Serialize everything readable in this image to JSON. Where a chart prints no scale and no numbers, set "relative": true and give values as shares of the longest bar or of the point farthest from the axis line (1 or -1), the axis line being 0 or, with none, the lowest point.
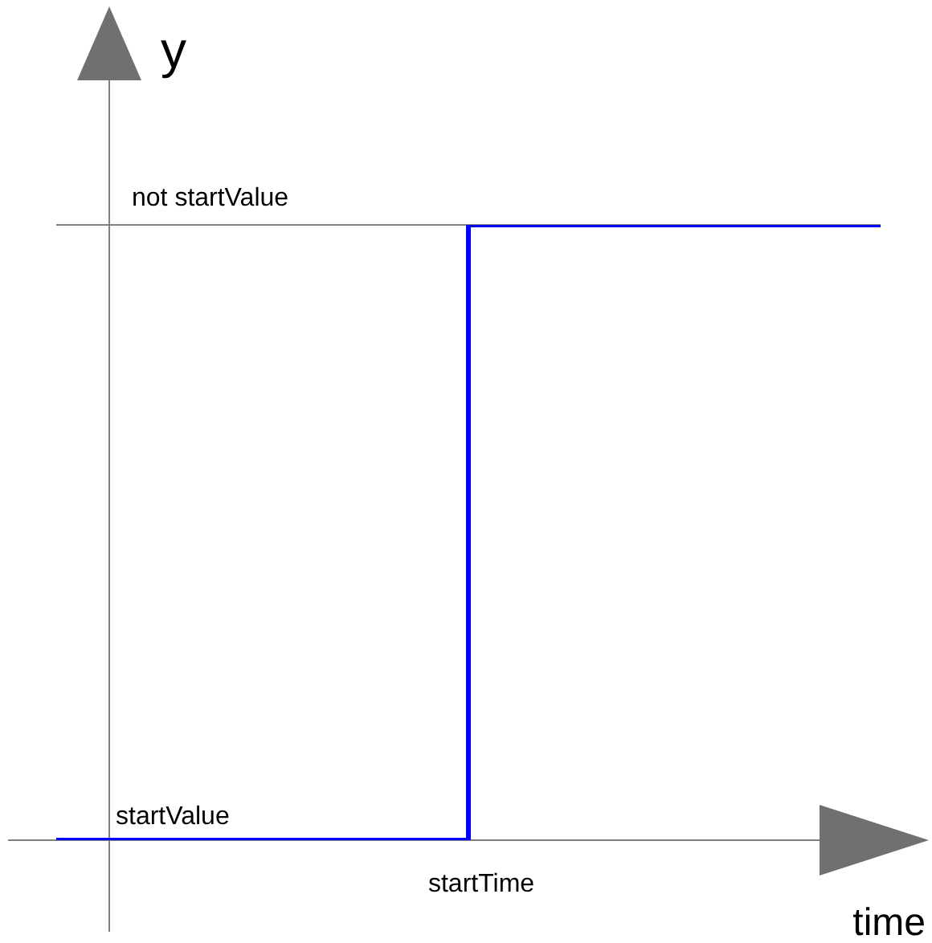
{
  "chart_data": {
    "type": "step",
    "relative": true,
    "xlabel": "time",
    "ylabel": "y",
    "categories": [
      null,
      null,
      null
    ],
    "values": [
      0,
      1,
      1
    ],
    "color": "#0000ff",
    "ref_lines": [
      {
        "axis": "y",
        "value": 1,
        "label": "not startValue",
        "color": "#808080"
      }
    ],
    "annotations": [
      {
        "text": "startValue",
        "y": 0
      },
      "startTime"
    ]
  }
}
